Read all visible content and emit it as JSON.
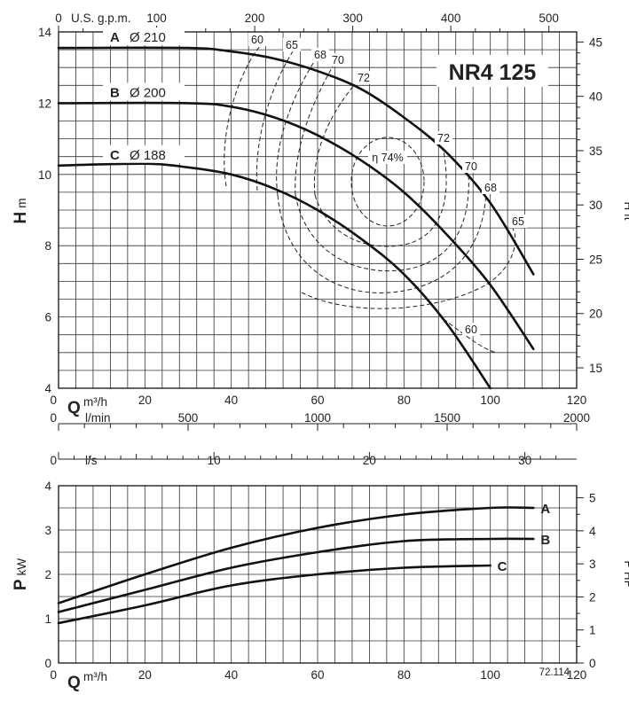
{
  "chart_data": [
    {
      "type": "line",
      "model": "NR4 125",
      "xlabel_symbol": "Q",
      "xlabel_unit": "m³/h",
      "ylabel_symbol": "H",
      "ylabel_unit": "m",
      "right_axis_label": "H ft",
      "top_axis_label": "U.S. g.p.m.",
      "xlim": [
        0,
        120
      ],
      "ylim": [
        4,
        14
      ],
      "x_ticks": [
        "0",
        "20",
        "40",
        "60",
        "80",
        "100",
        "120"
      ],
      "y_ticks": [
        "4",
        "6",
        "8",
        "10",
        "12",
        "14"
      ],
      "gpm_ticks": [
        "0",
        "100",
        "200",
        "300",
        "400",
        "500"
      ],
      "ft_ticks": [
        "15",
        "20",
        "25",
        "30",
        "35",
        "40",
        "45"
      ],
      "series": [
        {
          "name": "A",
          "diameter_label": "Ø 210",
          "x": [
            0,
            30,
            40,
            50,
            60,
            70,
            80,
            90,
            100,
            110
          ],
          "y": [
            13.55,
            13.55,
            13.45,
            13.25,
            12.9,
            12.4,
            11.6,
            10.6,
            9.2,
            7.2
          ]
        },
        {
          "name": "B",
          "diameter_label": "Ø 200",
          "x": [
            0,
            30,
            40,
            50,
            60,
            70,
            80,
            90,
            100,
            110
          ],
          "y": [
            12.0,
            12.0,
            11.9,
            11.6,
            11.1,
            10.4,
            9.5,
            8.3,
            6.9,
            5.1
          ]
        },
        {
          "name": "C",
          "diameter_label": "Ø 188",
          "x": [
            0,
            20,
            30,
            40,
            50,
            60,
            70,
            80,
            90,
            100
          ],
          "y": [
            10.25,
            10.3,
            10.2,
            10.0,
            9.6,
            9.0,
            8.2,
            7.2,
            5.8,
            4.0
          ]
        }
      ],
      "efficiency_labels": [
        "60",
        "65",
        "68",
        "70",
        "72",
        "η 74%",
        "72",
        "70",
        "68",
        "65",
        "60"
      ]
    },
    {
      "type": "line",
      "xlabel_symbol": "Q",
      "xlabel_unit": "m³/h",
      "ylabel_symbol": "P",
      "ylabel_unit": "kW",
      "right_axis_label": "P HP",
      "xlim": [
        0,
        120
      ],
      "ylim": [
        0,
        4
      ],
      "x_ticks": [
        "0",
        "20",
        "40",
        "60",
        "80",
        "100",
        "120"
      ],
      "y_ticks": [
        "0",
        "1",
        "2",
        "3",
        "4"
      ],
      "hp_ticks": [
        "0",
        "1",
        "2",
        "3",
        "4",
        "5"
      ],
      "series": [
        {
          "name": "A",
          "x": [
            0,
            20,
            40,
            60,
            80,
            100,
            110
          ],
          "y": [
            1.35,
            2.0,
            2.6,
            3.05,
            3.35,
            3.5,
            3.5
          ]
        },
        {
          "name": "B",
          "x": [
            0,
            20,
            40,
            60,
            80,
            100,
            110
          ],
          "y": [
            1.15,
            1.65,
            2.15,
            2.5,
            2.75,
            2.8,
            2.8
          ]
        },
        {
          "name": "C",
          "x": [
            0,
            20,
            40,
            60,
            80,
            100
          ],
          "y": [
            0.9,
            1.3,
            1.75,
            2.0,
            2.15,
            2.2
          ]
        }
      ]
    }
  ],
  "lmin_axis": {
    "label": "l/min",
    "ticks": [
      "0",
      "500",
      "1000",
      "1500",
      "2000"
    ]
  },
  "ls_axis": {
    "label": "l/s",
    "ticks": [
      "0",
      "10",
      "20",
      "30"
    ]
  },
  "code": "72.114"
}
